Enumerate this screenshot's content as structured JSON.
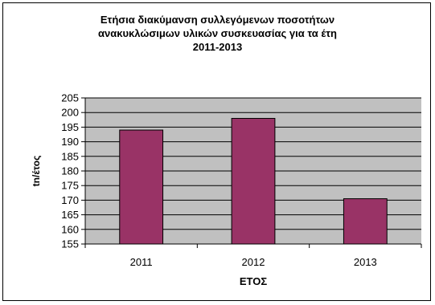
{
  "chart_data": {
    "type": "bar",
    "title": "Ετήσια διακύμανση συλλεγόμενων ποσοτήτων\nανακυκλώσιμων υλικών συσκευασίας για τα έτη\n2011-2013",
    "xlabel": "ΕΤΟΣ",
    "ylabel": "tn/έτος",
    "categories": [
      "2011",
      "2012",
      "2013"
    ],
    "values": [
      194,
      198,
      170.5
    ],
    "ylim": [
      155,
      205
    ],
    "yticks": [
      "155",
      "160",
      "165",
      "170",
      "175",
      "180",
      "185",
      "190",
      "195",
      "200",
      "205"
    ],
    "grid": true,
    "legend": "none",
    "colors": {
      "bar": "#993366",
      "plot_background": "#c0c0c0",
      "grid": "#000000"
    }
  }
}
